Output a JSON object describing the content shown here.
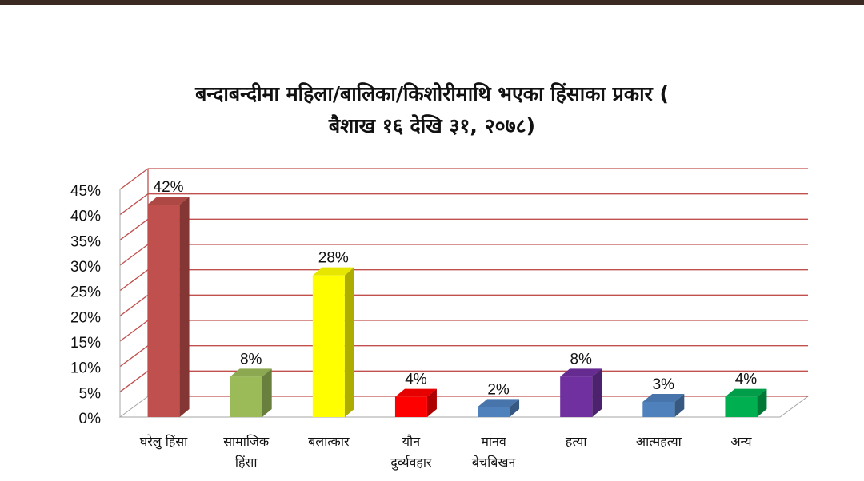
{
  "title_lines": [
    "बन्दाबन्दीमा महिला/बालिका/किशोरीमाथि भएका हिंसाका प्रकार (",
    "बैशाख १६ देखि ३१, २०७८)"
  ],
  "colors": {
    "gridline": "#c0504d",
    "axis": "#a6a6a6",
    "text": "#111111"
  },
  "chart_data": {
    "type": "bar",
    "title": "बन्दाबन्दीमा महिला/बालिका/किशोरीमाथि भएका हिंसाका प्रकार ( बैशाख १६ देखि ३१, २०७८)",
    "xlabel": "",
    "ylabel": "",
    "ylim": [
      0,
      45
    ],
    "y_unit": "%",
    "yticks": [
      "0%",
      "5%",
      "10%",
      "15%",
      "20%",
      "25%",
      "30%",
      "35%",
      "40%",
      "45%"
    ],
    "grid": true,
    "legend": "none",
    "categories": [
      [
        "घरेलु हिंसा"
      ],
      [
        "सामाजिक",
        "हिंसा"
      ],
      [
        "बलात्कार"
      ],
      [
        "यौन",
        "दुर्व्यवहार"
      ],
      [
        "मानव",
        "बेचबिखन"
      ],
      [
        "हत्या"
      ],
      [
        "आत्महत्या"
      ],
      [
        "अन्य"
      ]
    ],
    "values": [
      42,
      8,
      28,
      4,
      2,
      8,
      3,
      4
    ],
    "data_labels": [
      "42%",
      "8%",
      "28%",
      "4%",
      "2%",
      "8%",
      "3%",
      "4%"
    ],
    "bar_colors": [
      "#c0504d",
      "#9bbb59",
      "#ffff00",
      "#ff0000",
      "#4f81bd",
      "#7030a0",
      "#4f81bd",
      "#00b050"
    ]
  }
}
